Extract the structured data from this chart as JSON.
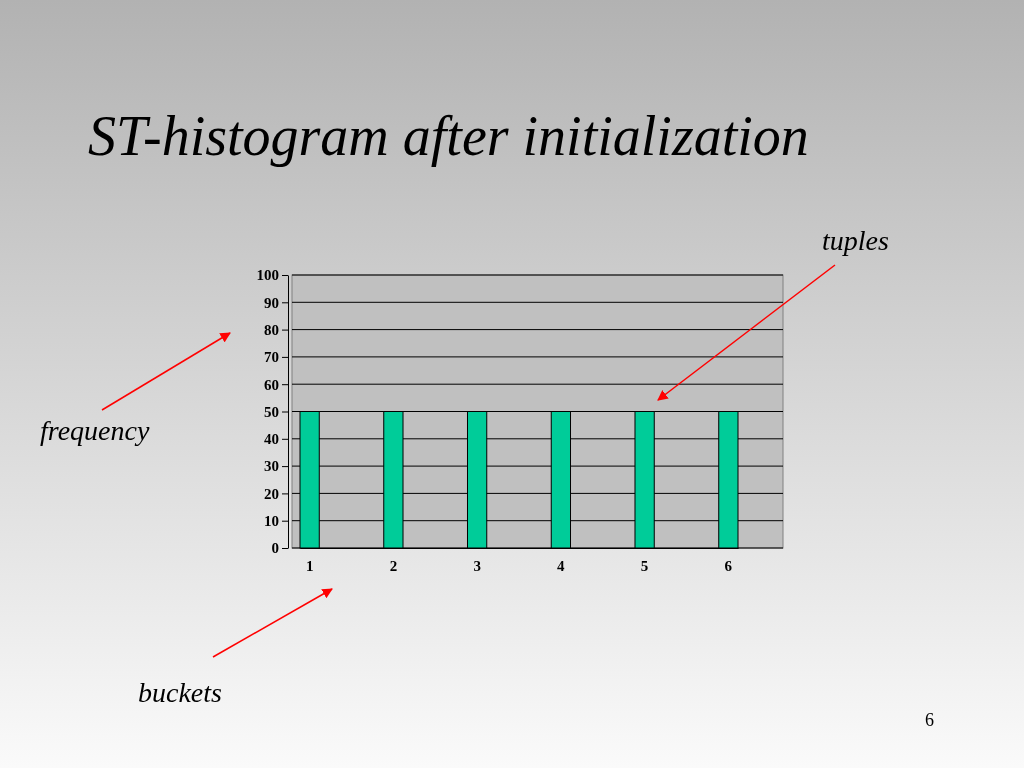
{
  "chart_data": {
    "type": "bar",
    "title": "ST-histogram after initialization",
    "categories": [
      "1",
      "2",
      "3",
      "4",
      "5",
      "6"
    ],
    "values": [
      50,
      50,
      50,
      50,
      50,
      50
    ],
    "color": "#00cc99",
    "ylim": [
      0,
      100
    ],
    "yticks": [
      0,
      10,
      20,
      30,
      40,
      50,
      60,
      70,
      80,
      90,
      100
    ],
    "grid": "y",
    "annotations": [
      "tuples",
      "frequency",
      "buckets",
      "6"
    ]
  }
}
